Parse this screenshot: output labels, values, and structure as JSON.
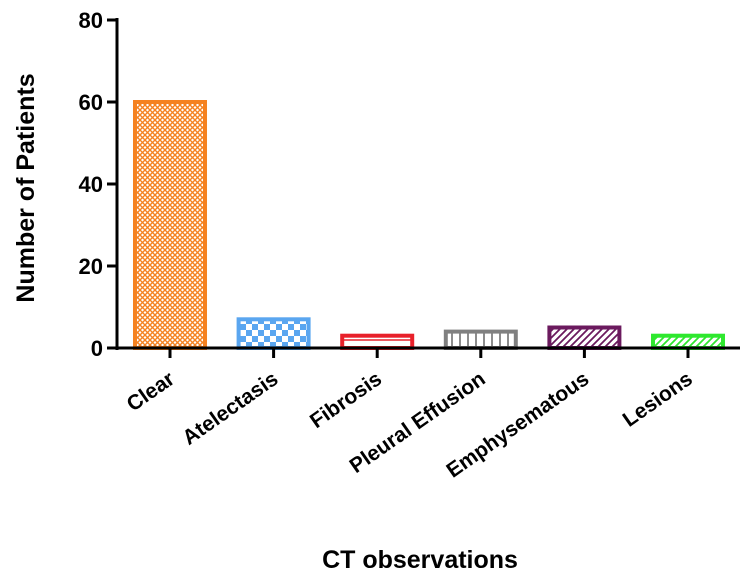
{
  "chart_data": {
    "type": "bar",
    "title": "",
    "xlabel": "CT observations",
    "ylabel": "Number of Patients",
    "ylim": [
      0,
      80
    ],
    "yticks": [
      0,
      20,
      40,
      60,
      80
    ],
    "grid": false,
    "categories": [
      "Clear",
      "Atelectasis",
      "Fibrosis",
      "Pleural Effusion",
      "Emphysematous",
      "Lesions"
    ],
    "values": [
      60,
      7,
      3,
      4,
      5,
      3
    ],
    "colors": [
      "#f58220",
      "#5aa6f0",
      "#e8202a",
      "#808080",
      "#6b1a5e",
      "#2ee82e"
    ],
    "patterns": [
      "crosshatch",
      "checker",
      "horizontal",
      "vertical",
      "diagonal",
      "diagonal"
    ]
  }
}
